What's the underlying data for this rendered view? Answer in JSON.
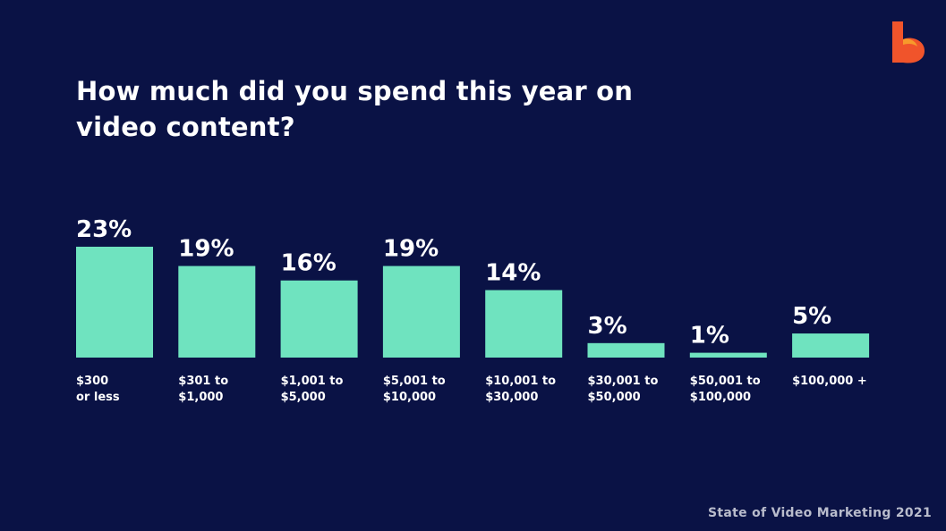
{
  "header": {
    "title": "How much did you spend this year on video content?"
  },
  "footer": {
    "source": "State of Video Marketing 2021"
  },
  "logo": {
    "icon": "brand-b-icon",
    "colors": [
      "#f0542b",
      "#f79a2b"
    ]
  },
  "colors": {
    "background": "#0a1245",
    "bar": "#6fe3bf",
    "text": "#ffffff"
  },
  "chart_data": {
    "type": "bar",
    "title": "How much did you spend this year on video content?",
    "xlabel": "",
    "ylabel": "",
    "ylim": [
      0,
      23
    ],
    "categories": [
      [
        "$300",
        "or less"
      ],
      [
        "$301 to",
        "$1,000"
      ],
      [
        "$1,001 to",
        "$5,000"
      ],
      [
        "$5,001 to",
        "$10,000"
      ],
      [
        "$10,001 to",
        "$30,000"
      ],
      [
        "$30,001 to",
        "$50,000"
      ],
      [
        "$50,001 to",
        "$100,000"
      ],
      [
        "$100,000 +"
      ]
    ],
    "values": [
      23,
      19,
      16,
      19,
      14,
      3,
      1,
      5
    ],
    "value_labels": [
      "23%",
      "19%",
      "16%",
      "19%",
      "14%",
      "3%",
      "1%",
      "5%"
    ],
    "grid": false,
    "legend": "none"
  }
}
